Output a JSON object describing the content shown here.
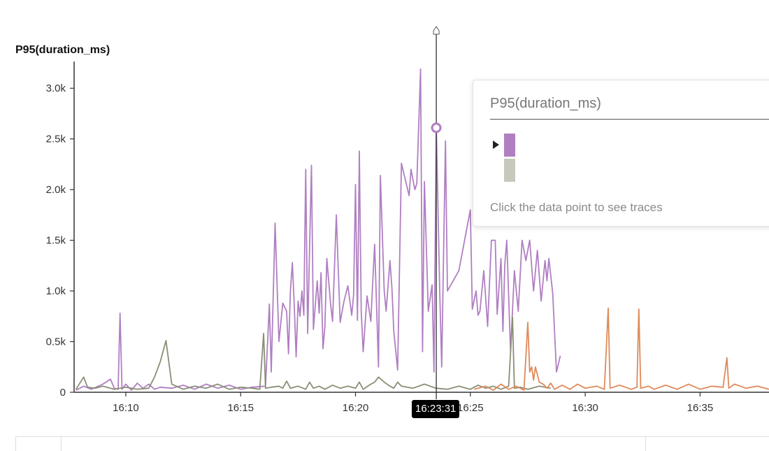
{
  "chart_data": {
    "type": "line",
    "ylabel": "P95(duration_ms)",
    "title": "",
    "xlabel": "",
    "x_ticks": [
      "16:10",
      "16:15",
      "16:20",
      "16:25",
      "16:30",
      "16:35"
    ],
    "y_ticks": [
      "0",
      "0.5k",
      "1.0k",
      "1.5k",
      "2.0k",
      "2.5k",
      "3.0k"
    ],
    "xlim": [
      "16:07:45",
      "16:38:00"
    ],
    "ylim": [
      0,
      3250
    ],
    "hover_time": "16:23:31",
    "hover_value": 2610,
    "colors": {
      "series_a": "#b07fc2",
      "series_b": "#8a8f76",
      "series_c": "#de8a5a"
    },
    "series": [
      {
        "color": "#b07fc2",
        "points": [
          [
            "16:07:50",
            20
          ],
          [
            "16:08:10",
            60
          ],
          [
            "16:08:30",
            30
          ],
          [
            "16:09:00",
            80
          ],
          [
            "16:09:20",
            130
          ],
          [
            "16:09:30",
            40
          ],
          [
            "16:09:40",
            30
          ],
          [
            "16:09:45",
            780
          ],
          [
            "16:09:50",
            30
          ],
          [
            "16:10:00",
            80
          ],
          [
            "16:10:15",
            20
          ],
          [
            "16:10:30",
            90
          ],
          [
            "16:10:45",
            40
          ],
          [
            "16:11:00",
            80
          ],
          [
            "16:11:15",
            30
          ],
          [
            "16:11:30",
            50
          ],
          [
            "16:12:00",
            40
          ],
          [
            "16:12:30",
            70
          ],
          [
            "16:13:00",
            30
          ],
          [
            "16:13:30",
            80
          ],
          [
            "16:14:00",
            40
          ],
          [
            "16:14:30",
            70
          ],
          [
            "16:15:00",
            30
          ],
          [
            "16:15:30",
            50
          ],
          [
            "16:16:05",
            60
          ],
          [
            "16:16:15",
            870
          ],
          [
            "16:16:20",
            200
          ],
          [
            "16:16:30",
            1670
          ],
          [
            "16:16:40",
            500
          ],
          [
            "16:16:50",
            880
          ],
          [
            "16:17:00",
            800
          ],
          [
            "16:17:05",
            380
          ],
          [
            "16:17:10",
            1000
          ],
          [
            "16:17:15",
            1280
          ],
          [
            "16:17:20",
            860
          ],
          [
            "16:17:25",
            350
          ],
          [
            "16:17:30",
            900
          ],
          [
            "16:17:35",
            750
          ],
          [
            "16:17:40",
            1000
          ],
          [
            "16:17:45",
            760
          ],
          [
            "16:17:50",
            2200
          ],
          [
            "16:17:55",
            580
          ],
          [
            "16:18:05",
            2240
          ],
          [
            "16:18:10",
            620
          ],
          [
            "16:18:20",
            1100
          ],
          [
            "16:18:25",
            780
          ],
          [
            "16:18:30",
            1180
          ],
          [
            "16:18:35",
            430
          ],
          [
            "16:18:40",
            650
          ],
          [
            "16:18:45",
            1320
          ],
          [
            "16:18:55",
            870
          ],
          [
            "16:19:00",
            700
          ],
          [
            "16:19:10",
            1750
          ],
          [
            "16:19:20",
            690
          ],
          [
            "16:19:30",
            900
          ],
          [
            "16:19:40",
            1050
          ],
          [
            "16:19:50",
            760
          ],
          [
            "16:19:55",
            960
          ],
          [
            "16:20:00",
            2050
          ],
          [
            "16:20:05",
            710
          ],
          [
            "16:20:10",
            2380
          ],
          [
            "16:20:15",
            800
          ],
          [
            "16:20:20",
            400
          ],
          [
            "16:20:30",
            950
          ],
          [
            "16:20:40",
            700
          ],
          [
            "16:20:50",
            1460
          ],
          [
            "16:21:00",
            250
          ],
          [
            "16:21:05",
            2140
          ],
          [
            "16:21:15",
            1000
          ],
          [
            "16:21:20",
            800
          ],
          [
            "16:21:30",
            1300
          ],
          [
            "16:21:35",
            1030
          ],
          [
            "16:21:40",
            600
          ],
          [
            "16:21:50",
            220
          ],
          [
            "16:22:00",
            2260
          ],
          [
            "16:22:20",
            1940
          ],
          [
            "16:22:25",
            2200
          ],
          [
            "16:22:35",
            2000
          ],
          [
            "16:22:40",
            2060
          ],
          [
            "16:22:50",
            3190
          ],
          [
            "16:22:55",
            400
          ],
          [
            "16:23:00",
            2080
          ],
          [
            "16:23:10",
            800
          ],
          [
            "16:23:20",
            1060
          ],
          [
            "16:23:25",
            200
          ],
          [
            "16:23:31",
            2610
          ],
          [
            "16:23:40",
            1000
          ],
          [
            "16:23:45",
            250
          ],
          [
            "16:23:55",
            2480
          ],
          [
            "16:24:00",
            1000
          ],
          [
            "16:24:30",
            1200
          ],
          [
            "16:24:50",
            1600
          ],
          [
            "16:25:00",
            1800
          ],
          [
            "16:25:05",
            820
          ],
          [
            "16:25:15",
            1000
          ],
          [
            "16:25:20",
            760
          ],
          [
            "16:25:25",
            800
          ],
          [
            "16:25:35",
            1200
          ],
          [
            "16:25:45",
            650
          ],
          [
            "16:25:55",
            1500
          ],
          [
            "16:26:05",
            1500
          ],
          [
            "16:26:10",
            770
          ],
          [
            "16:26:20",
            1320
          ],
          [
            "16:26:25",
            600
          ],
          [
            "16:26:30",
            1260
          ],
          [
            "16:26:35",
            1500
          ],
          [
            "16:26:45",
            400
          ],
          [
            "16:26:55",
            1200
          ],
          [
            "16:27:05",
            800
          ],
          [
            "16:27:15",
            1500
          ],
          [
            "16:27:25",
            1300
          ],
          [
            "16:27:35",
            1500
          ],
          [
            "16:27:45",
            1000
          ],
          [
            "16:27:55",
            1400
          ],
          [
            "16:28:05",
            900
          ],
          [
            "16:28:15",
            1300
          ],
          [
            "16:28:20",
            1100
          ],
          [
            "16:28:25",
            1320
          ],
          [
            "16:28:35",
            980
          ],
          [
            "16:28:45",
            200
          ],
          [
            "16:28:55",
            360
          ]
        ]
      },
      {
        "color": "#8a8f76",
        "points": [
          [
            "16:07:50",
            30
          ],
          [
            "16:08:10",
            150
          ],
          [
            "16:08:20",
            50
          ],
          [
            "16:08:40",
            40
          ],
          [
            "16:09:00",
            60
          ],
          [
            "16:09:30",
            30
          ],
          [
            "16:10:00",
            50
          ],
          [
            "16:10:30",
            30
          ],
          [
            "16:11:00",
            40
          ],
          [
            "16:11:15",
            150
          ],
          [
            "16:11:30",
            300
          ],
          [
            "16:11:45",
            510
          ],
          [
            "16:12:00",
            80
          ],
          [
            "16:12:30",
            30
          ],
          [
            "16:13:00",
            60
          ],
          [
            "16:13:30",
            40
          ],
          [
            "16:14:00",
            80
          ],
          [
            "16:14:30",
            30
          ],
          [
            "16:15:00",
            50
          ],
          [
            "16:15:30",
            40
          ],
          [
            "16:15:50",
            30
          ],
          [
            "16:16:00",
            580
          ],
          [
            "16:16:05",
            40
          ],
          [
            "16:16:20",
            50
          ],
          [
            "16:16:40",
            60
          ],
          [
            "16:16:50",
            40
          ],
          [
            "16:17:00",
            110
          ],
          [
            "16:17:10",
            40
          ],
          [
            "16:17:30",
            60
          ],
          [
            "16:17:50",
            30
          ],
          [
            "16:18:00",
            100
          ],
          [
            "16:18:10",
            40
          ],
          [
            "16:18:25",
            60
          ],
          [
            "16:18:40",
            30
          ],
          [
            "16:19:00",
            70
          ],
          [
            "16:19:20",
            40
          ],
          [
            "16:19:40",
            60
          ],
          [
            "16:20:00",
            40
          ],
          [
            "16:20:10",
            100
          ],
          [
            "16:20:20",
            30
          ],
          [
            "16:20:40",
            80
          ],
          [
            "16:20:50",
            100
          ],
          [
            "16:21:00",
            150
          ],
          [
            "16:21:15",
            100
          ],
          [
            "16:21:30",
            60
          ],
          [
            "16:21:40",
            40
          ],
          [
            "16:21:50",
            100
          ],
          [
            "16:22:00",
            60
          ],
          [
            "16:22:30",
            40
          ],
          [
            "16:23:00",
            80
          ],
          [
            "16:23:30",
            40
          ],
          [
            "16:24:00",
            30
          ],
          [
            "16:24:30",
            60
          ],
          [
            "16:25:00",
            30
          ],
          [
            "16:25:20",
            70
          ],
          [
            "16:25:40",
            40
          ],
          [
            "16:26:00",
            60
          ],
          [
            "16:26:20",
            30
          ],
          [
            "16:26:40",
            60
          ],
          [
            "16:26:50",
            740
          ],
          [
            "16:26:55",
            40
          ],
          [
            "16:27:10",
            50
          ],
          [
            "16:27:30",
            30
          ],
          [
            "16:28:00",
            60
          ],
          [
            "16:28:30",
            40
          ]
        ]
      },
      {
        "color": "#de8a5a",
        "points": [
          [
            "16:25:10",
            30
          ],
          [
            "16:25:40",
            60
          ],
          [
            "16:26:00",
            20
          ],
          [
            "16:26:20",
            80
          ],
          [
            "16:26:40",
            30
          ],
          [
            "16:27:00",
            60
          ],
          [
            "16:27:20",
            20
          ],
          [
            "16:27:30",
            690
          ],
          [
            "16:27:35",
            200
          ],
          [
            "16:27:40",
            250
          ],
          [
            "16:27:45",
            120
          ],
          [
            "16:27:50",
            250
          ],
          [
            "16:28:00",
            100
          ],
          [
            "16:28:10",
            80
          ],
          [
            "16:28:20",
            40
          ],
          [
            "16:28:30",
            90
          ],
          [
            "16:28:40",
            30
          ],
          [
            "16:29:00",
            70
          ],
          [
            "16:29:20",
            30
          ],
          [
            "16:29:40",
            80
          ],
          [
            "16:30:00",
            40
          ],
          [
            "16:30:30",
            60
          ],
          [
            "16:30:50",
            30
          ],
          [
            "16:31:00",
            830
          ],
          [
            "16:31:05",
            40
          ],
          [
            "16:31:30",
            70
          ],
          [
            "16:32:00",
            30
          ],
          [
            "16:32:15",
            50
          ],
          [
            "16:32:20",
            820
          ],
          [
            "16:32:25",
            40
          ],
          [
            "16:32:45",
            60
          ],
          [
            "16:33:00",
            30
          ],
          [
            "16:33:30",
            70
          ],
          [
            "16:34:00",
            30
          ],
          [
            "16:34:30",
            80
          ],
          [
            "16:35:00",
            30
          ],
          [
            "16:35:30",
            60
          ],
          [
            "16:36:00",
            50
          ],
          [
            "16:36:10",
            340
          ],
          [
            "16:36:15",
            40
          ],
          [
            "16:36:30",
            80
          ],
          [
            "16:37:00",
            40
          ],
          [
            "16:37:30",
            60
          ],
          [
            "16:38:00",
            30
          ]
        ]
      }
    ]
  },
  "tooltip": {
    "title": "P95(duration_ms)",
    "series": [
      {
        "name": "",
        "color": "#b07fc2",
        "selected": true
      },
      {
        "name": "",
        "color": "#c7c9bc",
        "selected": false
      }
    ],
    "hint": "Click the data point to see traces"
  }
}
